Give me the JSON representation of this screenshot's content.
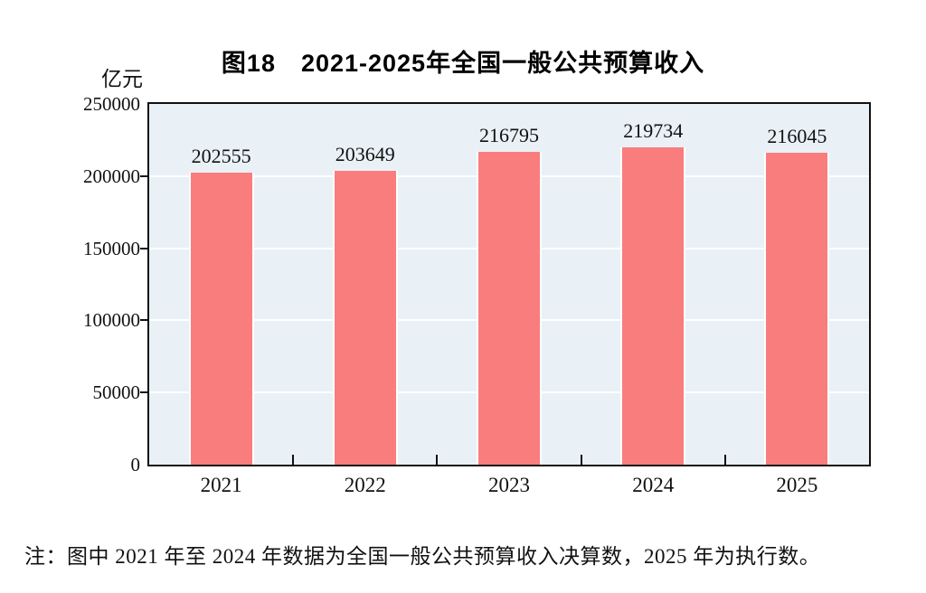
{
  "title": "图18　2021-2025年全国一般公共预算收入",
  "y_unit": "亿元",
  "note": "注：图中 2021 年至 2024 年数据为全国一般公共预算收入决算数，2025 年为执行数。",
  "colors": {
    "bar": "#fa7d7d",
    "plot_background": "#e9f1f6",
    "gridline": "#ffffff",
    "axis": "#111111"
  },
  "chart_data": {
    "type": "bar",
    "categories": [
      "2021",
      "2022",
      "2023",
      "2024",
      "2025"
    ],
    "values": [
      202555,
      203649,
      216795,
      219734,
      216045
    ],
    "title": "图18　2021-2025年全国一般公共预算收入",
    "xlabel": "",
    "ylabel": "亿元",
    "ylim": [
      0,
      250000
    ],
    "yticks": [
      0,
      50000,
      100000,
      150000,
      200000,
      250000
    ],
    "grid": "horizontal white gridlines behind bars",
    "legend": "none",
    "bar_value_labels": [
      "202555",
      "203649",
      "216795",
      "219734",
      "216045"
    ]
  }
}
